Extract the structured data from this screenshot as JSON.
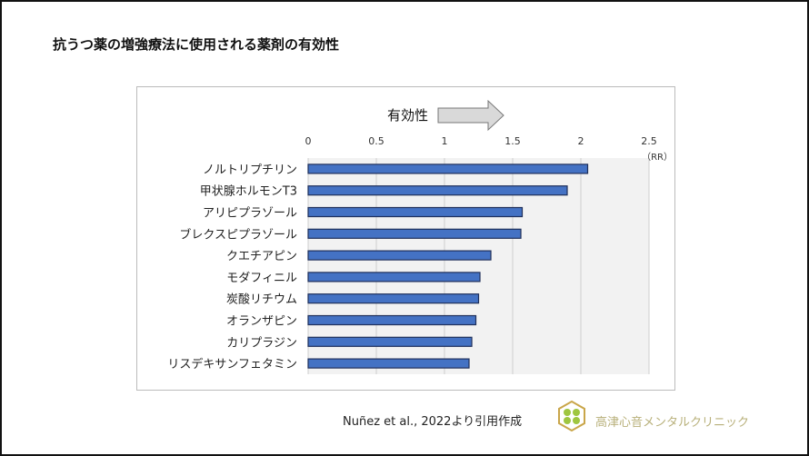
{
  "title": "抗うつ薬の増強療法に使用される薬剤の有効性",
  "arrow_label": "有効性",
  "source": "Nuñez et al., 2022より引用作成",
  "clinic_name": "高津心音メンタルクリニック",
  "colors": {
    "bar": "#4472c4",
    "bar_edge": "#1f2f5a",
    "plot_bg": "#f2f2f2",
    "logo": "#c9a64a"
  },
  "chart_data": {
    "type": "bar",
    "orientation": "horizontal",
    "categories": [
      "ノルトリプチリン",
      "甲状腺ホルモンT3",
      "アリピプラゾール",
      "ブレクスピプラゾール",
      "クエチアピン",
      "モダフィニル",
      "炭酸リチウム",
      "オランザピン",
      "カリプラジン",
      "リスデキサンフェタミン"
    ],
    "values": [
      2.05,
      1.9,
      1.57,
      1.56,
      1.34,
      1.26,
      1.25,
      1.23,
      1.2,
      1.18
    ],
    "xlim": [
      0,
      2.5
    ],
    "xticks": [
      "0",
      "0.5",
      "1",
      "1.5",
      "2",
      "2.5"
    ],
    "xunit": "（RR）",
    "grid": true
  }
}
